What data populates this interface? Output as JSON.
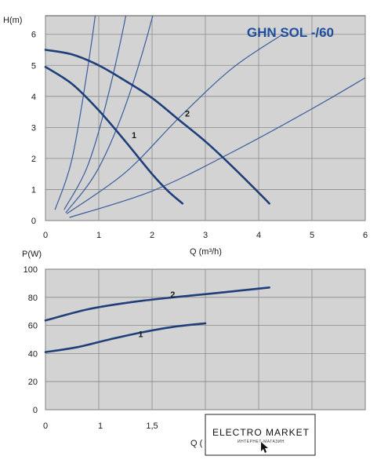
{
  "colors": {
    "plot_bg": "#d3d3d3",
    "grid": "#8a8a8a",
    "pump_curve": "#1f3f7a",
    "system_curve": "#3a5d9e",
    "title": "#1f4e9c"
  },
  "chart_data": [
    {
      "type": "line",
      "title": "GHN SOL -/60",
      "xlabel": "Q (m³/h)",
      "ylabel": "H(m)",
      "xlim": [
        0,
        6
      ],
      "ylim": [
        0,
        6.6
      ],
      "xticks": [
        0,
        1,
        2,
        3,
        4,
        5,
        6
      ],
      "yticks": [
        0,
        1,
        2,
        3,
        4,
        5,
        6
      ],
      "grid": true,
      "series": [
        {
          "name": "1",
          "x": [
            0,
            0.5,
            1.0,
            1.5,
            2.0,
            2.3,
            2.57
          ],
          "y": [
            4.95,
            4.4,
            3.55,
            2.55,
            1.5,
            0.95,
            0.55
          ]
        },
        {
          "name": "2",
          "x": [
            0,
            0.5,
            1.0,
            1.5,
            2.0,
            2.5,
            3.0,
            3.5,
            4.0,
            4.2
          ],
          "y": [
            5.5,
            5.35,
            5.0,
            4.5,
            3.95,
            3.25,
            2.55,
            1.75,
            0.9,
            0.55
          ]
        }
      ],
      "system_curves": [
        {
          "x": [
            0.18,
            0.5,
            0.8,
            1.0,
            1.2
          ],
          "y": [
            0.35,
            2.0,
            5.0,
            7.5,
            10.6
          ]
        },
        {
          "x": [
            0.35,
            0.8,
            1.2,
            1.6,
            1.9
          ],
          "y": [
            0.35,
            1.8,
            4.2,
            7.4,
            10.4
          ]
        },
        {
          "x": [
            0.38,
            1.0,
            1.6,
            2.2,
            2.9
          ],
          "y": [
            0.25,
            1.7,
            4.2,
            7.9,
            13.8
          ]
        },
        {
          "x": [
            0.4,
            1.5,
            2.5,
            3.5,
            4.45
          ],
          "y": [
            0.22,
            1.55,
            3.3,
            4.9,
            6.0
          ]
        },
        {
          "x": [
            0.45,
            2.0,
            3.5,
            5.0,
            6.0
          ],
          "y": [
            0.1,
            0.95,
            2.2,
            3.6,
            4.6
          ]
        }
      ]
    },
    {
      "type": "line",
      "xlabel": "Q (m³/h)",
      "ylabel": "P(W)",
      "xlim": [
        0,
        3
      ],
      "ylim": [
        0,
        100
      ],
      "xticks": [
        0,
        0.5,
        1,
        1.5,
        2,
        2.5,
        3
      ],
      "xtick_labels_visible": [
        "0",
        "1",
        "1,5"
      ],
      "yticks": [
        0,
        20,
        40,
        60,
        80,
        100
      ],
      "grid": true,
      "series": [
        {
          "name": "1",
          "x": [
            0,
            0.3,
            0.6,
            0.9,
            1.2,
            1.5
          ],
          "y": [
            41,
            44.5,
            50,
            55,
            59,
            61.5
          ]
        },
        {
          "name": "2",
          "x": [
            0,
            0.4,
            0.8,
            1.2,
            1.6,
            2.1
          ],
          "y": [
            63.5,
            71.5,
            76.5,
            80,
            83,
            87
          ]
        }
      ]
    }
  ],
  "watermark": {
    "text": "ELECTRO MARKET",
    "subtext": "ИНТЕРНЕТ-МАГАЗИН"
  }
}
